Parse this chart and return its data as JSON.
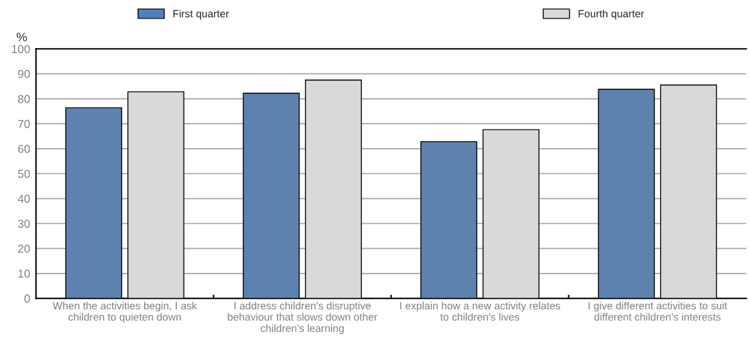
{
  "chart_data": {
    "type": "bar",
    "ylabel": "%",
    "categories": [
      "When the activities begin, I ask\nchildren to quieten down",
      "I address children's disruptive\nbehaviour that slows down other\nchildren's learning",
      "I explain how a new activity relates\nto children's lives",
      "I give different activities to suit\ndifferent children's interests"
    ],
    "series": [
      {
        "name": "First quarter",
        "color": "#4f81bd",
        "values": [
          76.4,
          82.2,
          62.8,
          83.8
        ]
      },
      {
        "name": "Fourth quarter",
        "color": "#d9d9d9",
        "values": [
          82.8,
          87.5,
          67.6,
          85.5
        ]
      }
    ],
    "ylim": [
      0,
      100
    ],
    "yticks": [
      0,
      10,
      20,
      30,
      40,
      50,
      60,
      70,
      80,
      90,
      100
    ],
    "grid": "y",
    "legend": "top"
  }
}
